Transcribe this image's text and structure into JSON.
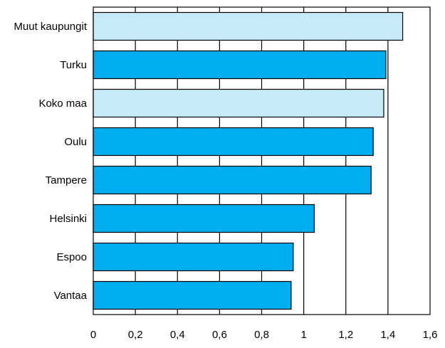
{
  "chart_data": {
    "type": "bar",
    "orientation": "horizontal",
    "title": "",
    "xlabel": "",
    "ylabel": "",
    "categories": [
      "Muut kaupungit",
      "Turku",
      "Koko maa",
      "Oulu",
      "Tampere",
      "Helsinki",
      "Espoo",
      "Vantaa"
    ],
    "values": [
      1.47,
      1.39,
      1.38,
      1.33,
      1.32,
      1.05,
      0.95,
      0.94
    ],
    "highlight": [
      true,
      false,
      true,
      false,
      false,
      false,
      false,
      false
    ],
    "xlim": [
      0,
      1.6
    ],
    "xticks": [
      0,
      0.2,
      0.4,
      0.6,
      0.8,
      1,
      1.2,
      1.4,
      1.6
    ],
    "xtick_labels": [
      "0",
      "0,2",
      "0,4",
      "0,6",
      "0,8",
      "1",
      "1,2",
      "1,4",
      "1,6"
    ],
    "grid": "vertical",
    "legend": "none",
    "colors": {
      "bar": "#00aeef",
      "bar_highlight": "#c7eaf8",
      "edge": "#000000",
      "grid": "#000000"
    }
  }
}
